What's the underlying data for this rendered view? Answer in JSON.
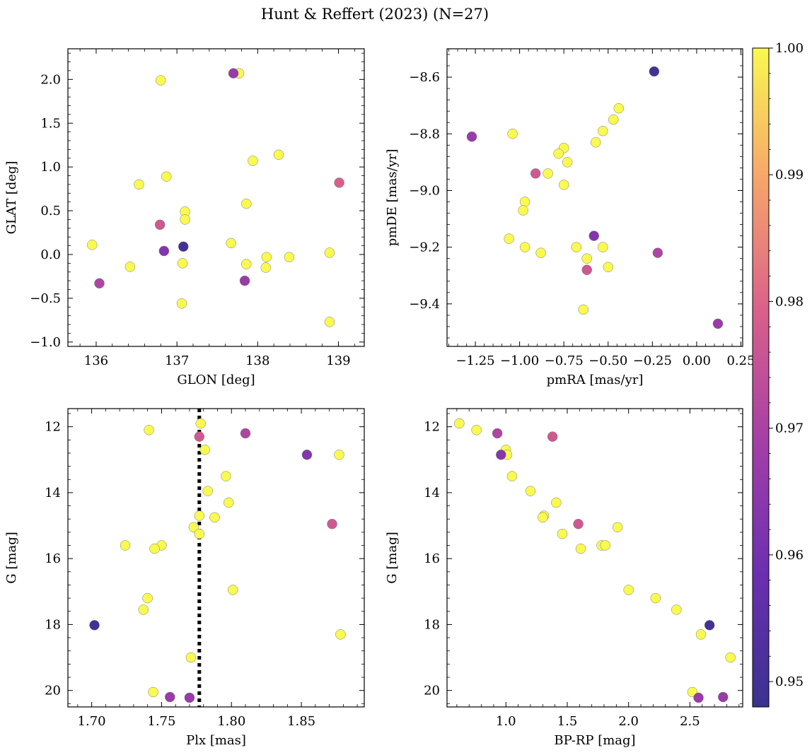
{
  "figure": {
    "title": "Hunt & Reffert (2023) (N=27)"
  },
  "colorbar": {
    "range": [
      0.948,
      1.0
    ],
    "ticks": [
      0.95,
      0.96,
      0.97,
      0.98,
      0.99,
      1.0
    ],
    "tick_labels": [
      "0.95",
      "0.96",
      "0.97",
      "0.98",
      "0.99",
      "1.00"
    ]
  },
  "chart_data": [
    {
      "type": "scatter",
      "xlabel": "GLON [deg]",
      "ylabel": "GLAT [deg]",
      "xlim": [
        135.65,
        139.32
      ],
      "ylim": [
        -1.05,
        2.35
      ],
      "xticks": [
        136,
        137,
        138,
        139
      ],
      "xtick_labels": [
        "136",
        "137",
        "138",
        "139"
      ],
      "yticks": [
        -1.0,
        -0.5,
        0.0,
        0.5,
        1.0,
        1.5,
        2.0
      ],
      "ytick_labels": [
        "−1.0",
        "−0.5",
        "0.0",
        "0.5",
        "1.0",
        "1.5",
        "2.0"
      ],
      "invert_y": false,
      "x": [
        137.7,
        137.77,
        136.8,
        138.26,
        137.94,
        136.87,
        136.53,
        139.01,
        137.86,
        137.1,
        137.1,
        136.79,
        136.84,
        137.08,
        137.67,
        135.95,
        138.89,
        137.07,
        137.86,
        138.11,
        138.39,
        138.1,
        136.42,
        136.04,
        137.84,
        137.06,
        138.89
      ],
      "y": [
        2.07,
        2.07,
        1.99,
        1.14,
        1.07,
        0.89,
        0.8,
        0.82,
        0.58,
        0.49,
        0.4,
        0.34,
        0.04,
        0.09,
        0.13,
        0.11,
        0.02,
        -0.1,
        -0.11,
        -0.03,
        -0.03,
        -0.15,
        -0.14,
        -0.33,
        -0.3,
        -0.56,
        -0.77
      ],
      "color": [
        0.967,
        1.0,
        1.0,
        1.0,
        1.0,
        1.0,
        1.0,
        0.979,
        1.0,
        1.0,
        1.0,
        0.977,
        0.963,
        0.95,
        1.0,
        1.0,
        1.0,
        1.0,
        1.0,
        1.0,
        1.0,
        1.0,
        1.0,
        0.971,
        0.967,
        1.0,
        1.0
      ]
    },
    {
      "type": "scatter",
      "xlabel": "pmRA [mas/yr]",
      "ylabel": "pmDE [mas/yr]",
      "xlim": [
        -1.41,
        0.26
      ],
      "ylim": [
        -9.55,
        -8.5
      ],
      "xticks": [
        -1.25,
        -1.0,
        -0.75,
        -0.5,
        -0.25,
        0.0,
        0.25
      ],
      "xtick_labels": [
        "−1.25",
        "−1.00",
        "−0.75",
        "−0.50",
        "−0.25",
        "0.00",
        "0.25"
      ],
      "yticks": [
        -9.4,
        -9.2,
        -9.0,
        -8.8,
        -8.6
      ],
      "ytick_labels": [
        "−9.4",
        "−9.2",
        "−9.0",
        "−8.8",
        "−8.6"
      ],
      "invert_y": false,
      "x": [
        -0.24,
        -0.44,
        -0.47,
        -0.53,
        -0.57,
        -0.75,
        -0.78,
        -0.84,
        -0.73,
        -0.75,
        -0.91,
        -1.04,
        -1.27,
        -0.97,
        -0.98,
        -1.06,
        -0.58,
        -0.53,
        -0.68,
        -0.88,
        -0.97,
        -0.62,
        -0.5,
        -0.62,
        -0.22,
        -0.64,
        0.12
      ],
      "y": [
        -8.58,
        -8.71,
        -8.75,
        -8.79,
        -8.83,
        -8.85,
        -8.87,
        -8.94,
        -8.9,
        -8.98,
        -8.94,
        -8.8,
        -8.81,
        -9.04,
        -9.07,
        -9.17,
        -9.16,
        -9.2,
        -9.2,
        -9.22,
        -9.2,
        -9.24,
        -9.27,
        -9.28,
        -9.22,
        -9.42,
        -9.47
      ],
      "color": [
        0.95,
        1.0,
        1.0,
        1.0,
        1.0,
        1.0,
        1.0,
        1.0,
        1.0,
        1.0,
        0.977,
        1.0,
        0.967,
        1.0,
        1.0,
        1.0,
        0.963,
        1.0,
        1.0,
        1.0,
        1.0,
        1.0,
        1.0,
        0.977,
        0.971,
        1.0,
        0.967
      ]
    },
    {
      "type": "scatter",
      "xlabel": "Plx [mas]",
      "ylabel": "G [mag]",
      "xlim": [
        1.683,
        1.895
      ],
      "ylim": [
        11.45,
        20.5
      ],
      "xticks": [
        1.7,
        1.75,
        1.8,
        1.85
      ],
      "xtick_labels": [
        "1.70",
        "1.75",
        "1.80",
        "1.85"
      ],
      "yticks": [
        12,
        14,
        16,
        18,
        20
      ],
      "ytick_labels": [
        "12",
        "14",
        "16",
        "18",
        "20"
      ],
      "invert_y": true,
      "vline": 1.777,
      "x": [
        1.778,
        1.741,
        1.777,
        1.81,
        1.781,
        1.877,
        1.854,
        1.796,
        1.783,
        1.798,
        1.788,
        1.777,
        1.773,
        1.872,
        1.777,
        1.724,
        1.75,
        1.745,
        1.801,
        1.74,
        1.737,
        1.702,
        1.878,
        1.771,
        1.744,
        1.756,
        1.77
      ],
      "y": [
        11.9,
        12.1,
        12.3,
        12.2,
        12.7,
        12.85,
        12.85,
        13.5,
        13.95,
        14.3,
        14.75,
        14.7,
        15.05,
        14.95,
        15.25,
        15.6,
        15.6,
        15.7,
        16.95,
        17.2,
        17.55,
        18.02,
        18.3,
        19.0,
        20.05,
        20.2,
        20.22
      ],
      "color": [
        1.0,
        1.0,
        0.977,
        0.971,
        1.0,
        1.0,
        0.963,
        1.0,
        1.0,
        1.0,
        1.0,
        1.0,
        1.0,
        0.977,
        1.0,
        1.0,
        1.0,
        1.0,
        1.0,
        1.0,
        1.0,
        0.95,
        1.0,
        1.0,
        1.0,
        0.967,
        0.967
      ]
    },
    {
      "type": "scatter",
      "xlabel": "BP-RP [mag]",
      "ylabel": "G [mag]",
      "xlim": [
        0.52,
        2.93
      ],
      "ylim": [
        11.45,
        20.5
      ],
      "xticks": [
        1.0,
        1.5,
        2.0,
        2.5
      ],
      "xtick_labels": [
        "1.0",
        "1.5",
        "2.0",
        "2.5"
      ],
      "yticks": [
        12,
        14,
        16,
        18,
        20
      ],
      "ytick_labels": [
        "12",
        "14",
        "16",
        "18",
        "20"
      ],
      "invert_y": true,
      "x": [
        0.62,
        0.76,
        0.93,
        0.96,
        1.0,
        1.01,
        1.05,
        1.2,
        1.31,
        1.3,
        1.41,
        1.46,
        1.59,
        1.38,
        1.61,
        1.78,
        1.81,
        1.91,
        2.0,
        2.22,
        2.39,
        2.66,
        2.59,
        2.83,
        2.52,
        2.57,
        2.77
      ],
      "y": [
        11.9,
        12.1,
        12.2,
        12.85,
        12.7,
        12.85,
        13.5,
        13.95,
        14.7,
        14.75,
        14.3,
        15.25,
        14.95,
        12.3,
        15.7,
        15.6,
        15.6,
        15.05,
        16.95,
        17.2,
        17.55,
        18.02,
        18.3,
        19.0,
        20.05,
        20.22,
        20.2
      ],
      "color": [
        1.0,
        1.0,
        0.971,
        0.963,
        1.0,
        1.0,
        1.0,
        1.0,
        1.0,
        1.0,
        1.0,
        1.0,
        0.977,
        0.977,
        1.0,
        1.0,
        1.0,
        1.0,
        1.0,
        1.0,
        1.0,
        0.95,
        1.0,
        1.0,
        1.0,
        0.967,
        0.967
      ]
    }
  ]
}
